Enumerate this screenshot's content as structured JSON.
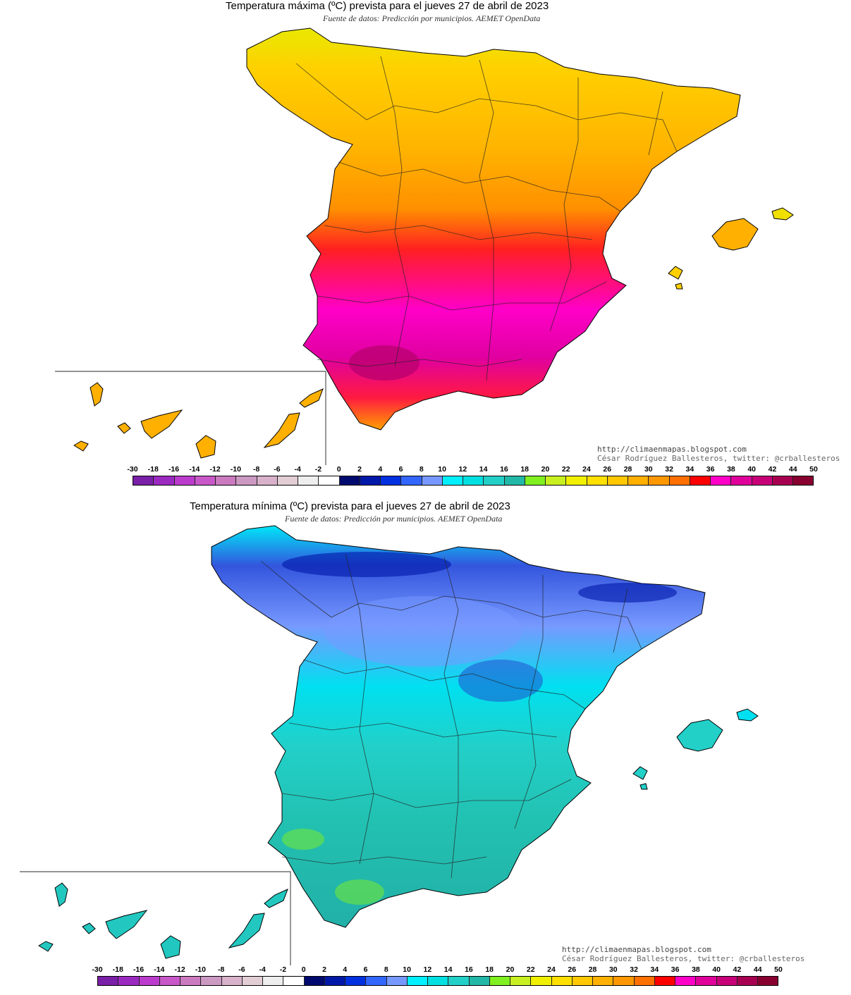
{
  "maps": [
    {
      "id": "max",
      "title": "Temperatura máxima (ºC) prevista para el jueves 27 de abril de 2023",
      "subtitle": "Fuente de datos: Predicción por municipios. AEMET OpenData",
      "credit_url": "http://climaenmapas.blogspot.com",
      "credit_author": "César Rodríguez Ballesteros, twitter: @crballesteros"
    },
    {
      "id": "min",
      "title": "Temperatura mínima (ºC) prevista para el jueves 27 de abril de 2023",
      "subtitle": "Fuente de datos: Predicción por municipios. AEMET OpenData",
      "credit_url": "http://climaenmapas.blogspot.com",
      "credit_author": "César Rodríguez Ballesteros, twitter: @crballesteros"
    }
  ],
  "legend": {
    "labels": [
      "-30",
      "-18",
      "-16",
      "-14",
      "-12",
      "-10",
      "-8",
      "-6",
      "-4",
      "-2",
      "0",
      "2",
      "4",
      "6",
      "8",
      "10",
      "12",
      "14",
      "16",
      "18",
      "20",
      "22",
      "24",
      "26",
      "28",
      "30",
      "32",
      "34",
      "36",
      "38",
      "40",
      "42",
      "44",
      "50"
    ],
    "colors": [
      "#7a1fa8",
      "#9b29c0",
      "#bb3ccc",
      "#c858c8",
      "#cc7ac0",
      "#cc99c2",
      "#d8b2ca",
      "#e2cdd5",
      "#eeeeee",
      "#ffffff",
      "#000a6e",
      "#0018a8",
      "#0030e0",
      "#3366ff",
      "#7799ff",
      "#00f0ff",
      "#00e0e0",
      "#22d0c8",
      "#22b8a8",
      "#80f020",
      "#c8f020",
      "#f0f000",
      "#ffe000",
      "#ffc800",
      "#ffb000",
      "#ff9800",
      "#ff7000",
      "#ff0000",
      "#ff00c8",
      "#e0009a",
      "#c80078",
      "#a80050",
      "#880030"
    ]
  }
}
